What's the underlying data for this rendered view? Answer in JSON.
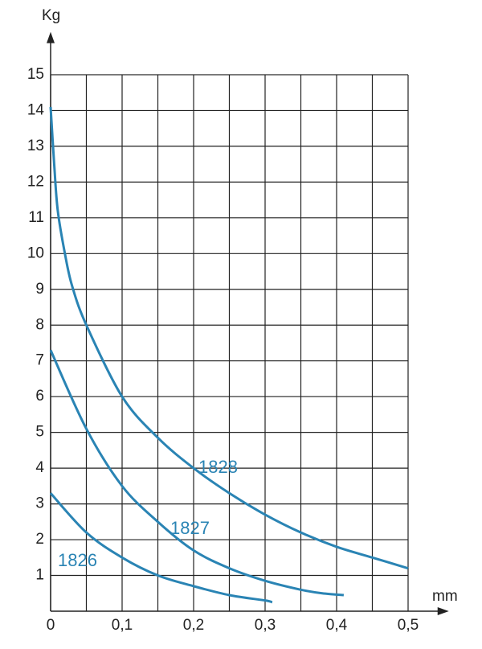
{
  "chart_data": {
    "type": "line",
    "x_label": "mm",
    "y_label": "Kg",
    "xlim": [
      0,
      0.557
    ],
    "ylim": [
      0,
      16.2
    ],
    "xticks": [
      0,
      {
        "value": 0.1,
        "label": "0,1"
      },
      {
        "value": 0.2,
        "label": "0,2"
      },
      {
        "value": 0.3,
        "label": "0,3"
      },
      {
        "value": 0.4,
        "label": "0,4"
      },
      {
        "value": 0.5,
        "label": "0,5"
      }
    ],
    "xgrid": [
      0,
      0.05,
      0.1,
      0.15,
      0.2,
      0.25,
      0.3,
      0.35,
      0.4,
      0.45,
      0.5
    ],
    "yticks": [
      1,
      2,
      3,
      4,
      5,
      6,
      7,
      8,
      9,
      10,
      11,
      12,
      13,
      14,
      15
    ],
    "grid": true,
    "series": [
      {
        "name": "1828",
        "color": "#2a84b4",
        "x": [
          0,
          0.005,
          0.01,
          0.02,
          0.03,
          0.05,
          0.1,
          0.15,
          0.2,
          0.25,
          0.3,
          0.35,
          0.4,
          0.45,
          0.5
        ],
        "values": [
          14.1,
          12.5,
          11.2,
          10,
          9.1,
          8.0,
          6.0,
          4.85,
          4.0,
          3.3,
          2.7,
          2.2,
          1.8,
          1.5,
          1.2
        ]
      },
      {
        "name": "1827",
        "color": "#2a84b4",
        "x": [
          0,
          0.05,
          0.1,
          0.15,
          0.2,
          0.25,
          0.3,
          0.35,
          0.38,
          0.41
        ],
        "values": [
          7.3,
          5.1,
          3.5,
          2.5,
          1.7,
          1.2,
          0.85,
          0.6,
          0.5,
          0.45
        ]
      },
      {
        "name": "1826",
        "color": "#2a84b4",
        "x": [
          0,
          0.05,
          0.1,
          0.15,
          0.2,
          0.25,
          0.3,
          0.31
        ],
        "values": [
          3.3,
          2.2,
          1.5,
          1.0,
          0.7,
          0.45,
          0.3,
          0.25
        ]
      }
    ]
  }
}
